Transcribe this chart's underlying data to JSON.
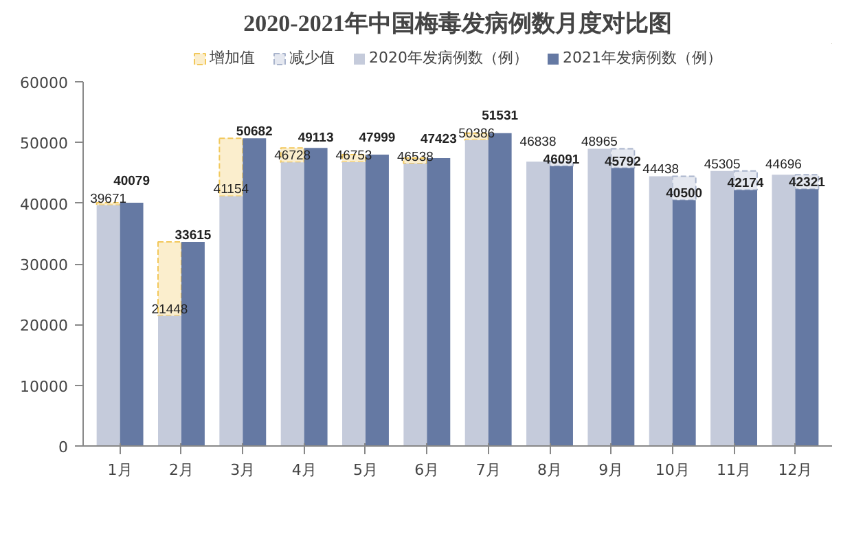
{
  "chart_data": {
    "type": "bar",
    "title": "2020-2021年中国梅毒发病例数月度对比图",
    "categories": [
      "1月",
      "2月",
      "3月",
      "4月",
      "5月",
      "6月",
      "7月",
      "8月",
      "9月",
      "10月",
      "11月",
      "12月"
    ],
    "series": [
      {
        "name": "增加值",
        "color": "#f2c85b",
        "base": [
          39671,
          21448,
          41154,
          46728,
          46753,
          46538,
          50386,
          null,
          null,
          null,
          null,
          null
        ],
        "values": [
          408,
          12167,
          9528,
          2385,
          1246,
          885,
          1145,
          null,
          null,
          null,
          null,
          null
        ]
      },
      {
        "name": "减少值",
        "color": "#a9b4cc",
        "base": [
          null,
          null,
          null,
          null,
          null,
          null,
          null,
          46091,
          45792,
          40500,
          42174,
          42321
        ],
        "values": [
          null,
          null,
          null,
          null,
          null,
          null,
          null,
          747,
          3173,
          3938,
          3131,
          2375
        ]
      },
      {
        "name": "2020年发病例数（例）",
        "color": "#c5cbdb",
        "values": [
          39671,
          21448,
          41154,
          46728,
          46753,
          46538,
          50386,
          46838,
          48965,
          44438,
          45305,
          44696
        ],
        "value_labels": [
          "39671",
          "21448",
          "41154",
          "46728",
          "46753",
          "46538",
          "50386",
          "46838",
          "48965",
          "44438",
          "45305",
          "44696"
        ]
      },
      {
        "name": "2021年发病例数（例）",
        "color": "#6579a3",
        "values": [
          40079,
          33615,
          50682,
          49113,
          47999,
          47423,
          51531,
          46091,
          45792,
          40500,
          42174,
          42321
        ],
        "value_labels": [
          "40079",
          "33615",
          "50682",
          "49113",
          "47999",
          "47423",
          "51531",
          "46091",
          "45792",
          "40500",
          "42174",
          "42321"
        ]
      }
    ],
    "ylim": [
      0,
      60000
    ],
    "yticks": [
      0,
      10000,
      20000,
      30000,
      40000,
      50000,
      60000
    ],
    "grid": false,
    "legend": "top"
  }
}
